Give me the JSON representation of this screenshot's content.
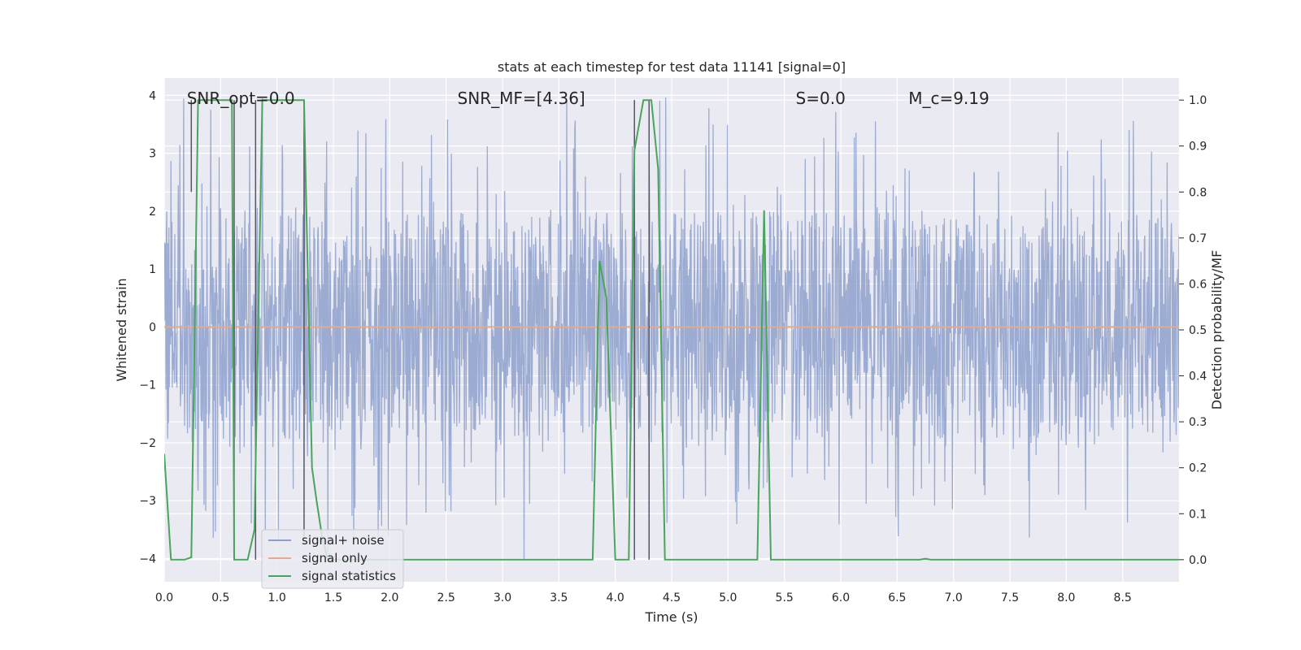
{
  "chart_data": {
    "type": "line",
    "title": "stats at each timestep for test data 11141 [signal=0]",
    "xlabel": "Time (s)",
    "ylabel": "Whitened strain",
    "y2label": "Detection probability/MF",
    "xlim": [
      0,
      9.0
    ],
    "ylim": [
      -4.4,
      4.3
    ],
    "y2lim": [
      -0.048,
      1.048
    ],
    "xticks": [
      "0.0",
      "0.5",
      "1.0",
      "1.5",
      "2.0",
      "2.5",
      "3.0",
      "3.5",
      "4.0",
      "4.5",
      "5.0",
      "5.5",
      "6.0",
      "6.5",
      "7.0",
      "7.5",
      "8.0",
      "8.5"
    ],
    "xtick_values": [
      0,
      0.5,
      1.0,
      1.5,
      2.0,
      2.5,
      3.0,
      3.5,
      4.0,
      4.5,
      5.0,
      5.5,
      6.0,
      6.5,
      7.0,
      7.5,
      8.0,
      8.5
    ],
    "yticks": [
      "4",
      "3",
      "2",
      "1",
      "0",
      "−1",
      "−2",
      "−3",
      "−4"
    ],
    "ytick_values": [
      4,
      3,
      2,
      1,
      0,
      -1,
      -2,
      -3,
      -4
    ],
    "y2ticks": [
      "1.0",
      "0.9",
      "0.8",
      "0.7",
      "0.6",
      "0.5",
      "0.4",
      "0.3",
      "0.2",
      "0.1",
      "0.0"
    ],
    "y2tick_values": [
      1.0,
      0.9,
      0.8,
      0.7,
      0.6,
      0.5,
      0.4,
      0.3,
      0.2,
      0.1,
      0.0
    ],
    "annotations": [
      {
        "name": "snr-opt-annotation",
        "text": "SNR_opt=0.0",
        "x": 0.2,
        "y": 3.95
      },
      {
        "name": "snr-mf-annotation",
        "text": "SNR_MF=[4.36]",
        "x": 2.6,
        "y": 3.95
      },
      {
        "name": "s-annotation",
        "text": "S=0.0",
        "x": 5.6,
        "y": 3.95
      },
      {
        "name": "mc-annotation",
        "text": "M_c=9.19",
        "x": 6.6,
        "y": 3.95
      }
    ],
    "noise_envelope": {
      "low": -2.0,
      "high": 2.0,
      "peak_max": 4.0,
      "peak_min": -3.8
    },
    "vertical_markers": [
      {
        "x": 0.24,
        "y_top": 1.0,
        "y_bottom": 0.8
      },
      {
        "x": 0.62,
        "y_top": 1.0,
        "y_bottom": 0.0
      },
      {
        "x": 0.81,
        "y_top": 1.0,
        "y_bottom": 0.0
      },
      {
        "x": 1.24,
        "y_top": 1.0,
        "y_bottom": 0.05
      },
      {
        "x": 4.17,
        "y_top": 1.0,
        "y_bottom": 0.0
      },
      {
        "x": 4.3,
        "y_top": 1.0,
        "y_bottom": 0.0
      }
    ],
    "series": [
      {
        "name": "signal+ noise",
        "color": "#8da0cb",
        "axis": "left",
        "kind": "noise"
      },
      {
        "name": "signal only",
        "color": "#e8a88a",
        "axis": "left",
        "x": [
          0,
          9.0
        ],
        "y": [
          0,
          0
        ]
      },
      {
        "name": "signal statistics",
        "color": "#4aa55c",
        "axis": "right",
        "x": [
          0.0,
          0.06,
          0.18,
          0.24,
          0.3,
          0.6,
          0.62,
          0.68,
          0.74,
          0.8,
          0.87,
          1.24,
          1.31,
          1.35,
          1.4,
          1.45,
          3.8,
          3.86,
          3.92,
          4.0,
          4.12,
          4.17,
          4.25,
          4.32,
          4.38,
          4.44,
          5.26,
          5.32,
          5.38,
          5.45,
          6.7,
          6.75,
          6.8,
          9.0
        ],
        "y": [
          0.23,
          0.0,
          0.0,
          0.005,
          1.0,
          1.0,
          0.0,
          0.0,
          0.0,
          0.065,
          1.0,
          1.0,
          0.2,
          0.13,
          0.05,
          0.0,
          0.0,
          0.65,
          0.57,
          0.0,
          0.0,
          0.89,
          1.0,
          1.0,
          0.85,
          0.0,
          0.0,
          0.76,
          0.0,
          0.0,
          0.0,
          0.002,
          0.0,
          0.0
        ]
      }
    ],
    "legend": {
      "location": "lower-left"
    }
  }
}
